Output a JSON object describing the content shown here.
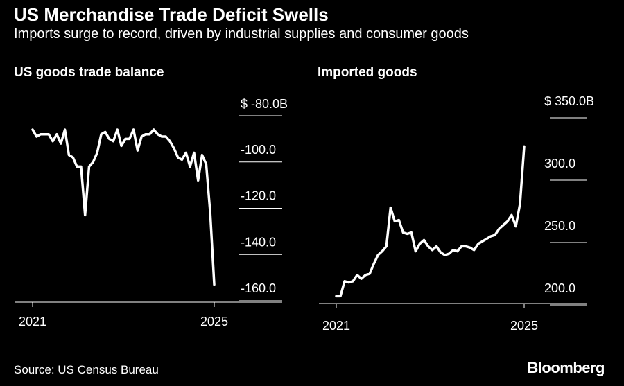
{
  "title": "US Merchandise Trade Deficit Swells",
  "subtitle": "Imports surge to record, driven by industrial supplies and consumer goods",
  "source": "Source: US Census Bureau",
  "brand": "Bloomberg",
  "colors": {
    "background": "#000000",
    "line": "#ffffff"
  },
  "chart_data": [
    {
      "type": "line",
      "title": "US goods trade balance",
      "x_ticks": [
        "2021",
        "2025"
      ],
      "y_ticks": [
        "$ -80.0B",
        "-100.0",
        "-120.0",
        "-140.0",
        "-160.0"
      ],
      "ylim": [
        -160,
        -80
      ],
      "x_start": "2021-01",
      "x_end": "2025-03",
      "series": [
        {
          "values": [
            -86,
            -89,
            -88,
            -88,
            -88,
            -91,
            -88,
            -92,
            -86,
            -97,
            -98,
            -102,
            -102,
            -123,
            -102,
            -100,
            -96,
            -88,
            -87,
            -90,
            -91,
            -86,
            -93,
            -90,
            -90,
            -86,
            -95,
            -89,
            -88,
            -88,
            -86,
            -88,
            -89,
            -89,
            -91,
            -94,
            -98,
            -99,
            -96,
            -102,
            -96,
            -108,
            -97,
            -101,
            -122,
            -153
          ]
        }
      ]
    },
    {
      "type": "line",
      "title": "Imported goods",
      "x_ticks": [
        "2021",
        "2025"
      ],
      "y_ticks": [
        "$ 350.0B",
        "300.0",
        "250.0",
        "200.0"
      ],
      "ylim": [
        200,
        350
      ],
      "x_start": "2021-01",
      "x_end": "2025-03",
      "series": [
        {
          "values": [
            207,
            207,
            219,
            218,
            219,
            224,
            221,
            224,
            225,
            233,
            240,
            243,
            247,
            278,
            267,
            268,
            258,
            257,
            258,
            243,
            249,
            252,
            247,
            244,
            247,
            242,
            240,
            241,
            244,
            243,
            247,
            247,
            246,
            244,
            249,
            251,
            253,
            255,
            256,
            261,
            264,
            267,
            272,
            263,
            281,
            327
          ]
        }
      ]
    }
  ]
}
